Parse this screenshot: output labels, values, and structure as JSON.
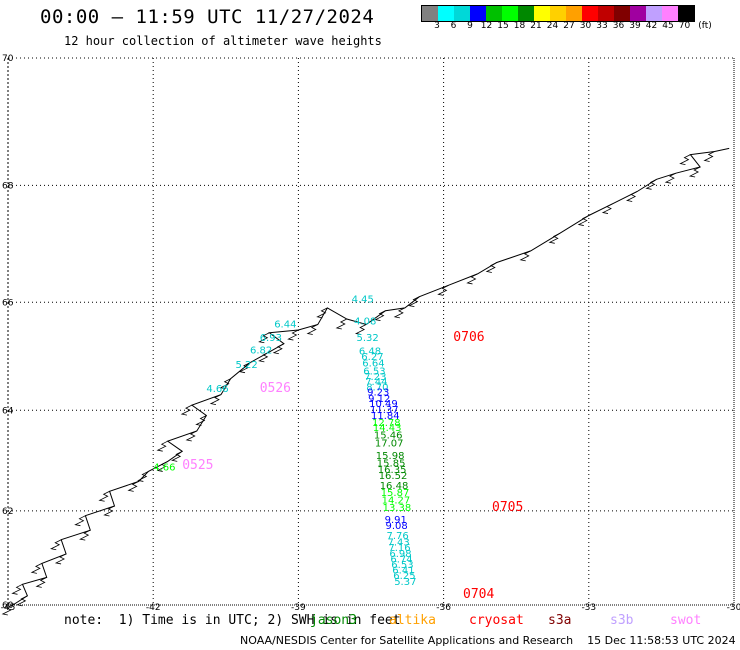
{
  "title": "00:00 – 11:59 UTC 11/27/2024",
  "subtitle": "12 hour collection of altimeter wave heights",
  "colorbar": {
    "colors": [
      "#808080",
      "#00ffff",
      "#00d8d8",
      "#0000ff",
      "#00c000",
      "#00ff00",
      "#008800",
      "#ffff00",
      "#ffd000",
      "#ffa000",
      "#ff0000",
      "#c00000",
      "#800000",
      "#a000a0",
      "#c0a0ff",
      "#ff80ff",
      "#000000"
    ],
    "labels": [
      "3",
      "6",
      "9",
      "12",
      "15",
      "18",
      "21",
      "24",
      "27",
      "30",
      "33",
      "36",
      "39",
      "42",
      "45",
      "70",
      "(ft)"
    ]
  },
  "axes": {
    "lon_ticks": [
      "-45",
      "-42",
      "-39",
      "-36",
      "-33",
      "-30"
    ],
    "lat_ticks": [
      "70",
      "68",
      "66",
      "64",
      "62",
      "60"
    ],
    "lon_range": [
      -45,
      -30
    ],
    "lat_range": [
      60,
      70
    ],
    "grid": "dotted"
  },
  "tracks": [
    {
      "id": "0706",
      "color": "#ff0000",
      "label_lon": -35.8,
      "label_lat": 65.3,
      "points": [
        {
          "lon": -37.9,
          "lat": 66.0,
          "v": "4.45",
          "c": "#00c8c8"
        },
        {
          "lon": -37.85,
          "lat": 65.6,
          "v": "4.08",
          "c": "#00c8c8"
        },
        {
          "lon": -37.8,
          "lat": 65.3,
          "v": "5.32",
          "c": "#00c8c8"
        },
        {
          "lon": -37.75,
          "lat": 65.05,
          "v": "6.48",
          "c": "#00c8c8"
        },
        {
          "lon": -37.7,
          "lat": 64.95,
          "v": "6.27",
          "c": "#00c8c8"
        },
        {
          "lon": -37.68,
          "lat": 64.83,
          "v": "6.64",
          "c": "#00c8c8"
        },
        {
          "lon": -37.66,
          "lat": 64.68,
          "v": "6.53",
          "c": "#00c8c8"
        },
        {
          "lon": -37.64,
          "lat": 64.58,
          "v": "7.23",
          "c": "#00c8c8"
        },
        {
          "lon": -37.62,
          "lat": 64.48,
          "v": "7.44",
          "c": "#00c8c8"
        },
        {
          "lon": -37.6,
          "lat": 64.38,
          "v": "8.70",
          "c": "#00c8c8"
        },
        {
          "lon": -37.58,
          "lat": 64.28,
          "v": "9.23",
          "c": "#0000ff"
        },
        {
          "lon": -37.56,
          "lat": 64.16,
          "v": "9.12",
          "c": "#0000ff"
        },
        {
          "lon": -37.54,
          "lat": 64.06,
          "v": "10.49",
          "c": "#0000ff"
        },
        {
          "lon": -37.52,
          "lat": 63.95,
          "v": "11.37",
          "c": "#0000ff"
        },
        {
          "lon": -37.5,
          "lat": 63.83,
          "v": "11.84",
          "c": "#0000ff"
        },
        {
          "lon": -37.48,
          "lat": 63.7,
          "v": "12.78",
          "c": "#00ff00"
        },
        {
          "lon": -37.46,
          "lat": 63.6,
          "v": "14.43",
          "c": "#00ff00"
        },
        {
          "lon": -37.44,
          "lat": 63.45,
          "v": "15.46",
          "c": "#008800"
        },
        {
          "lon": -37.42,
          "lat": 63.3,
          "v": "17.07",
          "c": "#008800"
        },
        {
          "lon": -37.4,
          "lat": 63.05,
          "v": "15.98",
          "c": "#008800"
        },
        {
          "lon": -37.38,
          "lat": 62.9,
          "v": "15.85",
          "c": "#008800"
        },
        {
          "lon": -37.36,
          "lat": 62.77,
          "v": "16.35",
          "c": "#008800"
        },
        {
          "lon": -37.34,
          "lat": 62.65,
          "v": "16.52",
          "c": "#008800"
        },
        {
          "lon": -37.32,
          "lat": 62.45,
          "v": "16.48",
          "c": "#008800"
        },
        {
          "lon": -37.3,
          "lat": 62.3,
          "v": "15.87",
          "c": "#00ff00"
        },
        {
          "lon": -37.28,
          "lat": 62.15,
          "v": "14.27",
          "c": "#00ff00"
        },
        {
          "lon": -37.26,
          "lat": 62.0,
          "v": "13.38",
          "c": "#00ff00"
        }
      ]
    },
    {
      "id": "0705",
      "color": "#ff0000",
      "label_lon": -35.0,
      "label_lat": 62.0,
      "points": [
        {
          "lon": -37.22,
          "lat": 61.75,
          "v": "9.91",
          "c": "#0000ff"
        },
        {
          "lon": -37.2,
          "lat": 61.62,
          "v": "9.08",
          "c": "#0000ff"
        },
        {
          "lon": -37.18,
          "lat": 61.42,
          "v": "7.76",
          "c": "#00c8c8"
        },
        {
          "lon": -37.16,
          "lat": 61.28,
          "v": "7.43",
          "c": "#00c8c8"
        },
        {
          "lon": -37.14,
          "lat": 61.16,
          "v": "7.16",
          "c": "#00c8c8"
        },
        {
          "lon": -37.12,
          "lat": 61.04,
          "v": "6.98",
          "c": "#00c8c8"
        },
        {
          "lon": -37.1,
          "lat": 60.92,
          "v": "6.74",
          "c": "#00c8c8"
        },
        {
          "lon": -37.08,
          "lat": 60.8,
          "v": "6.53",
          "c": "#00c8c8"
        },
        {
          "lon": -37.06,
          "lat": 60.68,
          "v": "6.41",
          "c": "#00c8c8"
        },
        {
          "lon": -37.04,
          "lat": 60.56,
          "v": "6.25",
          "c": "#00c8c8"
        },
        {
          "lon": -37.02,
          "lat": 60.44,
          "v": "5.37",
          "c": "#00c8c8"
        }
      ]
    },
    {
      "id": "0704",
      "color": "#ff0000",
      "label_lon": -35.6,
      "label_lat": 60.15,
      "points": []
    },
    {
      "id": "0526",
      "color": "#ff80ff",
      "label_lon": -39.8,
      "label_lat": 64.35,
      "points": [
        {
          "lon": -39.5,
          "lat": 65.55,
          "v": "6.44",
          "c": "#00c8c8"
        },
        {
          "lon": -39.8,
          "lat": 65.3,
          "v": "6.93",
          "c": "#00c8c8"
        },
        {
          "lon": -40.0,
          "lat": 65.07,
          "v": "6.82",
          "c": "#00c8c8"
        },
        {
          "lon": -40.3,
          "lat": 64.8,
          "v": "5.22",
          "c": "#00c8c8"
        },
        {
          "lon": -40.9,
          "lat": 64.35,
          "v": "4.66",
          "c": "#00c8c8"
        }
      ]
    },
    {
      "id": "0525",
      "color": "#ff80ff",
      "label_lon": -41.4,
      "label_lat": 62.85,
      "points": [
        {
          "lon": -42.0,
          "lat": 62.82,
          "v": "4.66",
          "c": "#00ff00"
        }
      ]
    }
  ],
  "footer_note": "note:  1) Time is in UTC; 2) SWH is in feet",
  "satellites": [
    {
      "name": "jason3",
      "color": "#008800"
    },
    {
      "name": "altika",
      "color": "#ffa000"
    },
    {
      "name": "cryosat",
      "color": "#ff0000"
    },
    {
      "name": "s3a",
      "color": "#800000"
    },
    {
      "name": "s3b",
      "color": "#c0a0ff"
    },
    {
      "name": "swot",
      "color": "#ff80ff"
    }
  ],
  "credit": "NOAA/NESDIS Center for Satellite Applications and Research    15 Dec 11:58:53 UTC 2024"
}
